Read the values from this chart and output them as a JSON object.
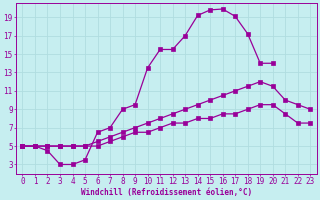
{
  "xlabel": "Windchill (Refroidissement éolien,°C)",
  "xlim": [
    -0.5,
    23.5
  ],
  "ylim": [
    2.0,
    20.5
  ],
  "xticks": [
    0,
    1,
    2,
    3,
    4,
    5,
    6,
    7,
    8,
    9,
    10,
    11,
    12,
    13,
    14,
    15,
    16,
    17,
    18,
    19,
    20,
    21,
    22,
    23
  ],
  "yticks": [
    3,
    5,
    7,
    9,
    11,
    13,
    15,
    17,
    19
  ],
  "bg_color": "#c6eef0",
  "line_color": "#990099",
  "grid_color": "#b0dde0",
  "curves": [
    {
      "x": [
        0,
        1,
        2,
        3,
        4,
        5,
        6,
        7,
        8,
        9,
        10,
        11,
        12,
        13,
        14,
        15,
        16,
        17,
        18,
        19,
        20
      ],
      "y": [
        5,
        5,
        4.5,
        3,
        3,
        3.5,
        6.5,
        7,
        9,
        9.5,
        13.5,
        15.5,
        15.5,
        17,
        19.2,
        19.8,
        19.9,
        19.1,
        17.2,
        14.0,
        14.0
      ]
    },
    {
      "x": [
        0,
        1,
        2,
        3,
        4,
        5,
        6,
        7,
        8,
        9,
        10,
        11,
        12,
        13,
        14,
        15,
        16,
        17,
        18,
        19,
        20,
        21,
        22,
        23
      ],
      "y": [
        5,
        5,
        5,
        5,
        5,
        5,
        5.5,
        6,
        6.5,
        7,
        7.5,
        8,
        8.5,
        9,
        9.5,
        10,
        10.5,
        11,
        11.5,
        12,
        11.5,
        10,
        9.5,
        9
      ]
    },
    {
      "x": [
        0,
        1,
        2,
        3,
        4,
        5,
        6,
        7,
        8,
        9,
        10,
        11,
        12,
        13,
        14,
        15,
        16,
        17,
        18,
        19,
        20,
        21,
        22,
        23
      ],
      "y": [
        5,
        5,
        5,
        5,
        5,
        5,
        5,
        5.5,
        6,
        6.5,
        6.5,
        7,
        7.5,
        7.5,
        8,
        8,
        8.5,
        8.5,
        9,
        9.5,
        9.5,
        8.5,
        7.5,
        7.5
      ]
    }
  ],
  "tick_fontsize": 5.5,
  "xlabel_fontsize": 5.5,
  "linewidth": 0.9,
  "markersize": 2.5
}
